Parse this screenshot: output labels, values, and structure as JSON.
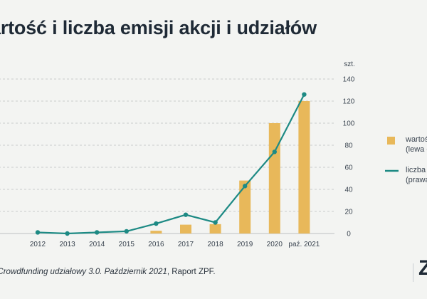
{
  "title": "artość i liczba emisji akcji i udziałów",
  "left_unit": "",
  "right_unit": "szt.",
  "source_prefix": ": ",
  "source_italic": "Crowdfunding udziałowy 3.0. Październik 2021",
  "source_suffix": ", Raport ZPF.",
  "logo_text": "Z",
  "colors": {
    "bar": "#e8b85a",
    "line": "#1d8a84",
    "grid": "#c8cbcc",
    "text": "#3a4450"
  },
  "legend": [
    {
      "line1": "wartoś",
      "line2": "(lewa o"
    },
    {
      "line1": "liczba",
      "line2": "(prawa"
    }
  ],
  "chart_data": {
    "type": "bar+line",
    "categories": [
      "2012",
      "2013",
      "2014",
      "2015",
      "2016",
      "2017",
      "2018",
      "2019",
      "2020",
      "paź. 2021"
    ],
    "series": [
      {
        "type": "bar",
        "axis": "left",
        "values": [
          0,
          0,
          0,
          0,
          2.5,
          8,
          8.5,
          48,
          100,
          120
        ]
      },
      {
        "type": "line",
        "axis": "right",
        "values": [
          1,
          0,
          1,
          2,
          9,
          17,
          10,
          43,
          74,
          126
        ]
      }
    ],
    "y_right": {
      "min": 0,
      "max": 140,
      "ticks": [
        0,
        20,
        40,
        60,
        80,
        100,
        120,
        140
      ]
    },
    "y_left": {
      "min": 0,
      "max": 140
    },
    "grid": true,
    "legend_position": "right"
  }
}
